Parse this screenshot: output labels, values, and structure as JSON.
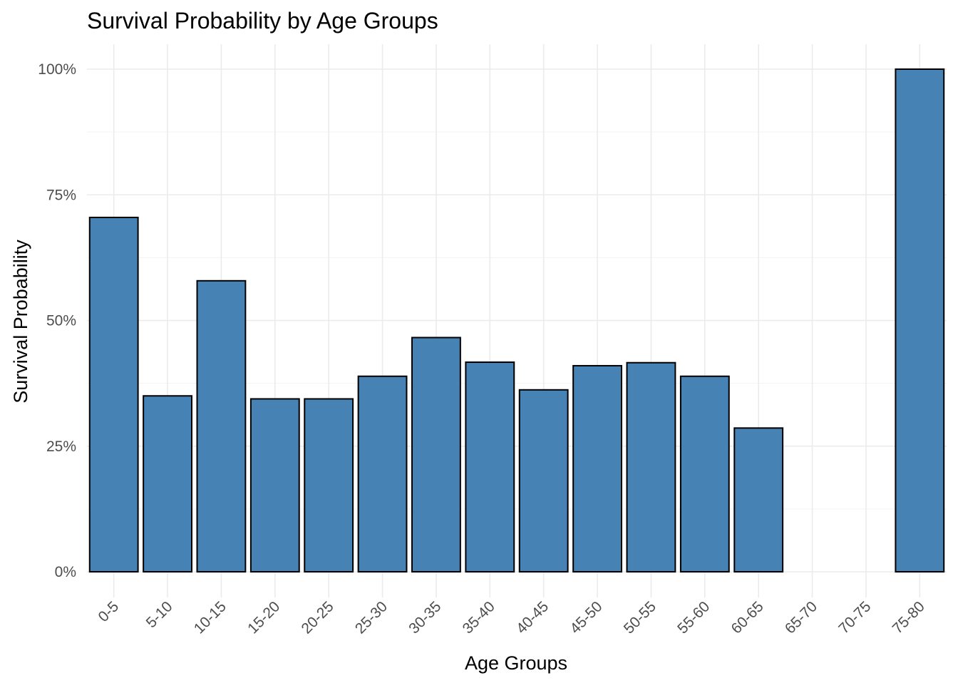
{
  "chart_data": {
    "type": "bar",
    "title": "Survival Probability by Age Groups",
    "xlabel": "Age Groups",
    "ylabel": "Survival Probability",
    "categories": [
      "0-5",
      "5-10",
      "10-15",
      "15-20",
      "20-25",
      "25-30",
      "30-35",
      "35-40",
      "40-45",
      "45-50",
      "50-55",
      "55-60",
      "60-65",
      "65-70",
      "70-75",
      "75-80"
    ],
    "values": [
      0.705,
      0.35,
      0.579,
      0.344,
      0.344,
      0.389,
      0.466,
      0.417,
      0.362,
      0.41,
      0.416,
      0.389,
      0.286,
      0,
      0,
      1.0
    ],
    "ylim": [
      0,
      1
    ],
    "yticks": [
      0,
      0.25,
      0.5,
      0.75,
      1.0
    ],
    "ytick_labels": [
      "0%",
      "25%",
      "50%",
      "75%",
      "100%"
    ],
    "bar_color": "#4682b4",
    "bar_outline": "#000000",
    "grid": true,
    "legend": "none"
  }
}
